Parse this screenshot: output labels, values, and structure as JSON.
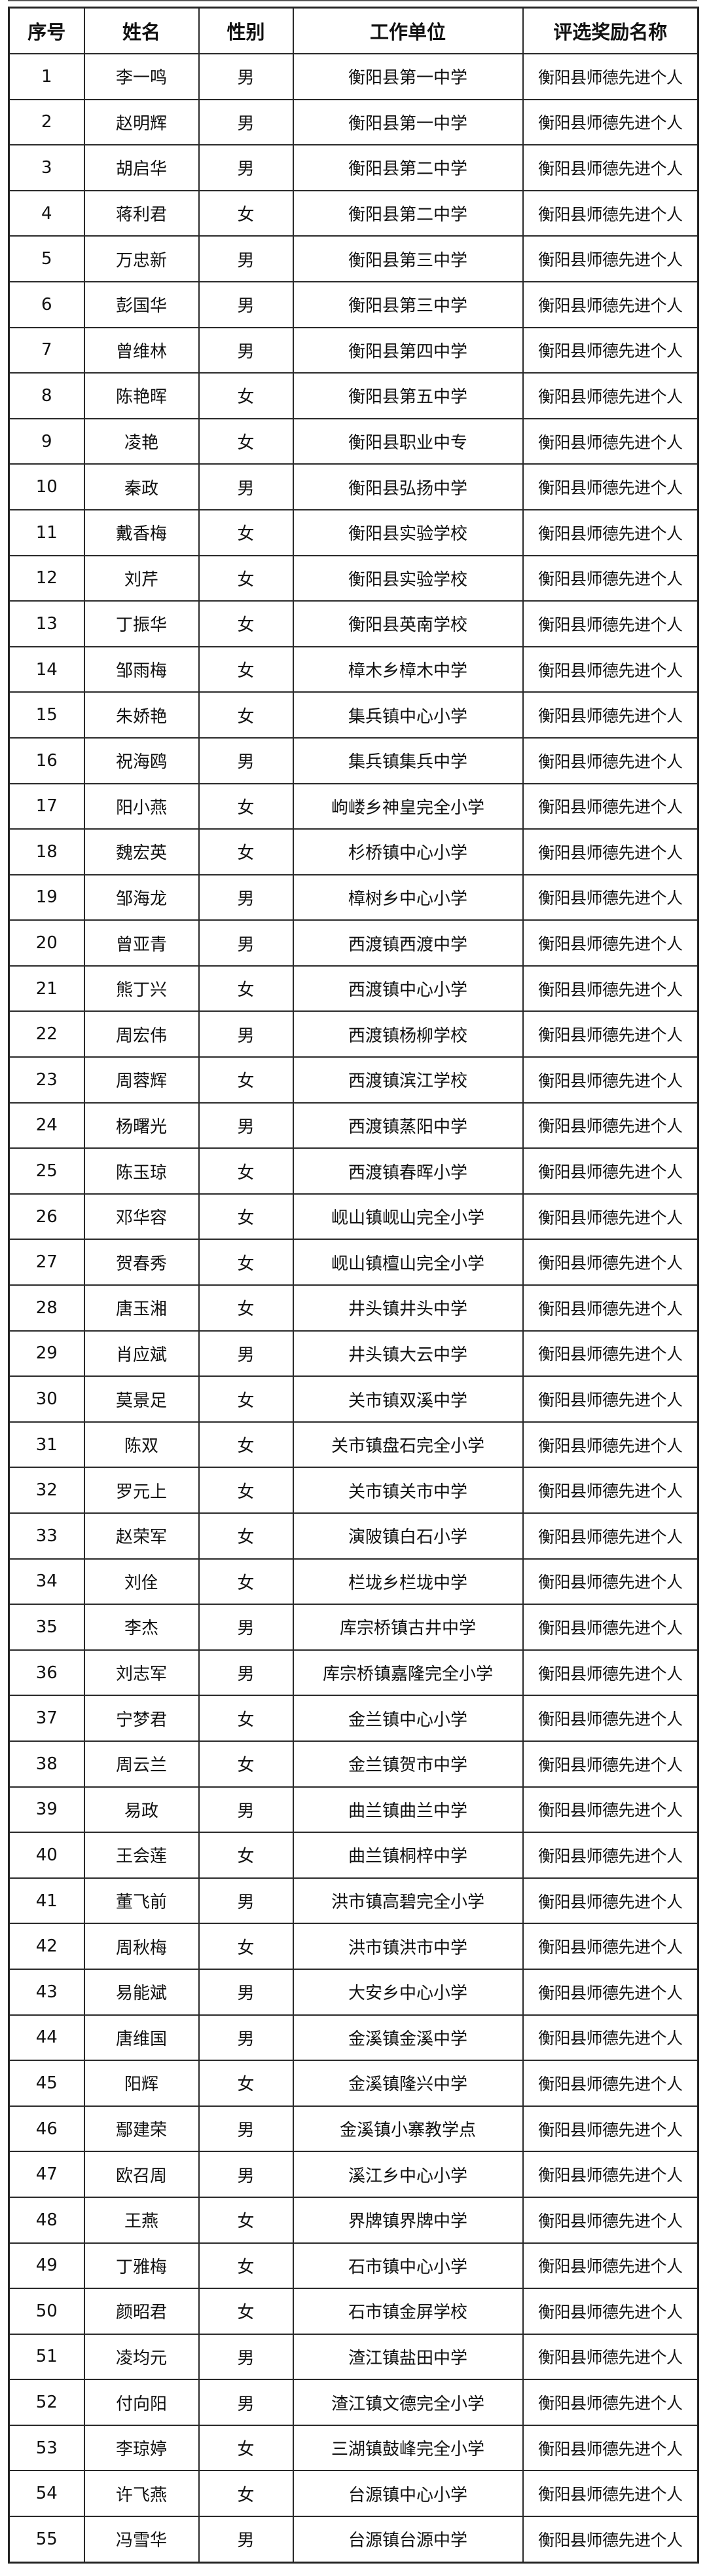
{
  "table": {
    "headers": [
      "序号",
      "姓名",
      "性别",
      "工作单位",
      "评选奖励名称"
    ],
    "rows": [
      [
        "1",
        "李一鸣",
        "男",
        "衡阳县第一中学",
        "衡阳县师德先进个人"
      ],
      [
        "2",
        "赵明辉",
        "男",
        "衡阳县第一中学",
        "衡阳县师德先进个人"
      ],
      [
        "3",
        "胡启华",
        "男",
        "衡阳县第二中学",
        "衡阳县师德先进个人"
      ],
      [
        "4",
        "蒋利君",
        "女",
        "衡阳县第二中学",
        "衡阳县师德先进个人"
      ],
      [
        "5",
        "万忠新",
        "男",
        "衡阳县第三中学",
        "衡阳县师德先进个人"
      ],
      [
        "6",
        "彭国华",
        "男",
        "衡阳县第三中学",
        "衡阳县师德先进个人"
      ],
      [
        "7",
        "曾维林",
        "男",
        "衡阳县第四中学",
        "衡阳县师德先进个人"
      ],
      [
        "8",
        "陈艳晖",
        "女",
        "衡阳县第五中学",
        "衡阳县师德先进个人"
      ],
      [
        "9",
        "凌艳",
        "女",
        "衡阳县职业中专",
        "衡阳县师德先进个人"
      ],
      [
        "10",
        "秦政",
        "男",
        "衡阳县弘扬中学",
        "衡阳县师德先进个人"
      ],
      [
        "11",
        "戴香梅",
        "女",
        "衡阳县实验学校",
        "衡阳县师德先进个人"
      ],
      [
        "12",
        "刘芹",
        "女",
        "衡阳县实验学校",
        "衡阳县师德先进个人"
      ],
      [
        "13",
        "丁振华",
        "女",
        "衡阳县英南学校",
        "衡阳县师德先进个人"
      ],
      [
        "14",
        "邹雨梅",
        "女",
        "樟木乡樟木中学",
        "衡阳县师德先进个人"
      ],
      [
        "15",
        "朱娇艳",
        "女",
        "集兵镇中心小学",
        "衡阳县师德先进个人"
      ],
      [
        "16",
        "祝海鸥",
        "男",
        "集兵镇集兵中学",
        "衡阳县师德先进个人"
      ],
      [
        "17",
        "阳小燕",
        "女",
        "岣嵝乡神皇完全小学",
        "衡阳县师德先进个人"
      ],
      [
        "18",
        "魏宏英",
        "女",
        "杉桥镇中心小学",
        "衡阳县师德先进个人"
      ],
      [
        "19",
        "邹海龙",
        "男",
        "樟树乡中心小学",
        "衡阳县师德先进个人"
      ],
      [
        "20",
        "曾亚青",
        "男",
        "西渡镇西渡中学",
        "衡阳县师德先进个人"
      ],
      [
        "21",
        "熊丁兴",
        "女",
        "西渡镇中心小学",
        "衡阳县师德先进个人"
      ],
      [
        "22",
        "周宏伟",
        "男",
        "西渡镇杨柳学校",
        "衡阳县师德先进个人"
      ],
      [
        "23",
        "周蓉辉",
        "女",
        "西渡镇滨江学校",
        "衡阳县师德先进个人"
      ],
      [
        "24",
        "杨曙光",
        "男",
        "西渡镇蒸阳中学",
        "衡阳县师德先进个人"
      ],
      [
        "25",
        "陈玉琼",
        "女",
        "西渡镇春晖小学",
        "衡阳县师德先进个人"
      ],
      [
        "26",
        "邓华容",
        "女",
        "岘山镇岘山完全小学",
        "衡阳县师德先进个人"
      ],
      [
        "27",
        "贺春秀",
        "女",
        "岘山镇檀山完全小学",
        "衡阳县师德先进个人"
      ],
      [
        "28",
        "唐玉湘",
        "女",
        "井头镇井头中学",
        "衡阳县师德先进个人"
      ],
      [
        "29",
        "肖应斌",
        "男",
        "井头镇大云中学",
        "衡阳县师德先进个人"
      ],
      [
        "30",
        "莫景足",
        "女",
        "关市镇双溪中学",
        "衡阳县师德先进个人"
      ],
      [
        "31",
        "陈双",
        "女",
        "关市镇盘石完全小学",
        "衡阳县师德先进个人"
      ],
      [
        "32",
        "罗元上",
        "女",
        "关市镇关市中学",
        "衡阳县师德先进个人"
      ],
      [
        "33",
        "赵荣军",
        "女",
        "演陂镇白石小学",
        "衡阳县师德先进个人"
      ],
      [
        "34",
        "刘佺",
        "女",
        "栏垅乡栏垅中学",
        "衡阳县师德先进个人"
      ],
      [
        "35",
        "李杰",
        "男",
        "库宗桥镇古井中学",
        "衡阳县师德先进个人"
      ],
      [
        "36",
        "刘志军",
        "男",
        "库宗桥镇嘉隆完全小学",
        "衡阳县师德先进个人"
      ],
      [
        "37",
        "宁梦君",
        "女",
        "金兰镇中心小学",
        "衡阳县师德先进个人"
      ],
      [
        "38",
        "周云兰",
        "女",
        "金兰镇贺市中学",
        "衡阳县师德先进个人"
      ],
      [
        "39",
        "易政",
        "男",
        "曲兰镇曲兰中学",
        "衡阳县师德先进个人"
      ],
      [
        "40",
        "王会莲",
        "女",
        "曲兰镇桐梓中学",
        "衡阳县师德先进个人"
      ],
      [
        "41",
        "董飞前",
        "男",
        "洪市镇高碧完全小学",
        "衡阳县师德先进个人"
      ],
      [
        "42",
        "周秋梅",
        "女",
        "洪市镇洪市中学",
        "衡阳县师德先进个人"
      ],
      [
        "43",
        "易能斌",
        "男",
        "大安乡中心小学",
        "衡阳县师德先进个人"
      ],
      [
        "44",
        "唐维国",
        "男",
        "金溪镇金溪中学",
        "衡阳县师德先进个人"
      ],
      [
        "45",
        "阳辉",
        "女",
        "金溪镇隆兴中学",
        "衡阳县师德先进个人"
      ],
      [
        "46",
        "鄢建荣",
        "男",
        "金溪镇小寨教学点",
        "衡阳县师德先进个人"
      ],
      [
        "47",
        "欧召周",
        "男",
        "溪江乡中心小学",
        "衡阳县师德先进个人"
      ],
      [
        "48",
        "王燕",
        "女",
        "界牌镇界牌中学",
        "衡阳县师德先进个人"
      ],
      [
        "49",
        "丁雅梅",
        "女",
        "石市镇中心小学",
        "衡阳县师德先进个人"
      ],
      [
        "50",
        "颜昭君",
        "女",
        "石市镇金屏学校",
        "衡阳县师德先进个人"
      ],
      [
        "51",
        "凌均元",
        "男",
        "渣江镇盐田中学",
        "衡阳县师德先进个人"
      ],
      [
        "52",
        "付向阳",
        "男",
        "渣江镇文德完全小学",
        "衡阳县师德先进个人"
      ],
      [
        "53",
        "李琼婷",
        "女",
        "三湖镇鼓峰完全小学",
        "衡阳县师德先进个人"
      ],
      [
        "54",
        "许飞燕",
        "女",
        "台源镇中心小学",
        "衡阳县师德先进个人"
      ],
      [
        "55",
        "冯雪华",
        "男",
        "台源镇台源中学",
        "衡阳县师德先进个人"
      ]
    ]
  }
}
